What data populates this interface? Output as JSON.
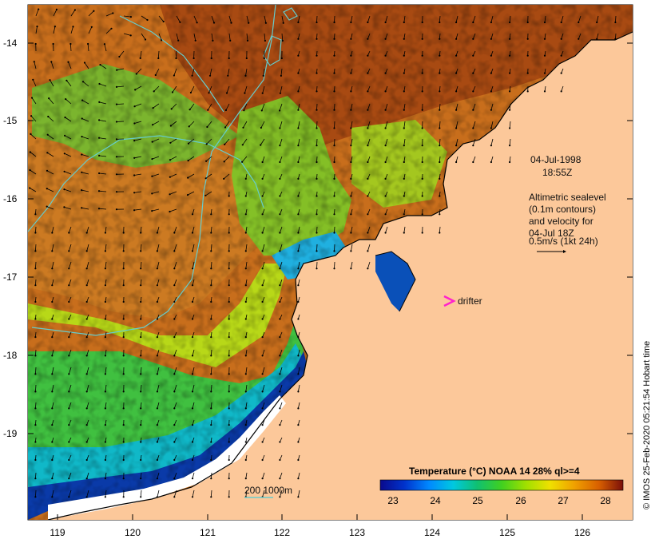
{
  "map": {
    "y_ticks": [
      "-14",
      "-15",
      "-16",
      "-17",
      "-18",
      "-19"
    ],
    "x_ticks": [
      "119",
      "120",
      "121",
      "122",
      "123",
      "124",
      "125",
      "126"
    ],
    "date_line": "04-Jul-1998",
    "time_line": "18:55Z",
    "altimetry_lines": [
      "Altimetric sealevel",
      "(0.1m contours)",
      "and velocity for",
      "04-Jul 18Z",
      "0.5m/s (1kt 24h)"
    ],
    "drifter_label": "drifter",
    "bathymetry_label": "200  1000m",
    "credit": "© IMOS 25-Feb-2020 05:21:54 Hobart time"
  },
  "colorbar": {
    "title": "Temperature (°C) NOAA 14 28% ql>=4",
    "labels": [
      "23",
      "24",
      "25",
      "26",
      "27",
      "28"
    ],
    "colors": [
      "#0a0a8c",
      "#0033cc",
      "#0088ff",
      "#00c8e0",
      "#10c070",
      "#40d020",
      "#a0e000",
      "#f0e000",
      "#f0a000",
      "#d86000",
      "#b03000",
      "#7a0f0a"
    ]
  },
  "colors": {
    "land": "#fcc89a",
    "coast": "#000000",
    "contour": "#66cccc",
    "drifter": "#ff22cc"
  }
}
